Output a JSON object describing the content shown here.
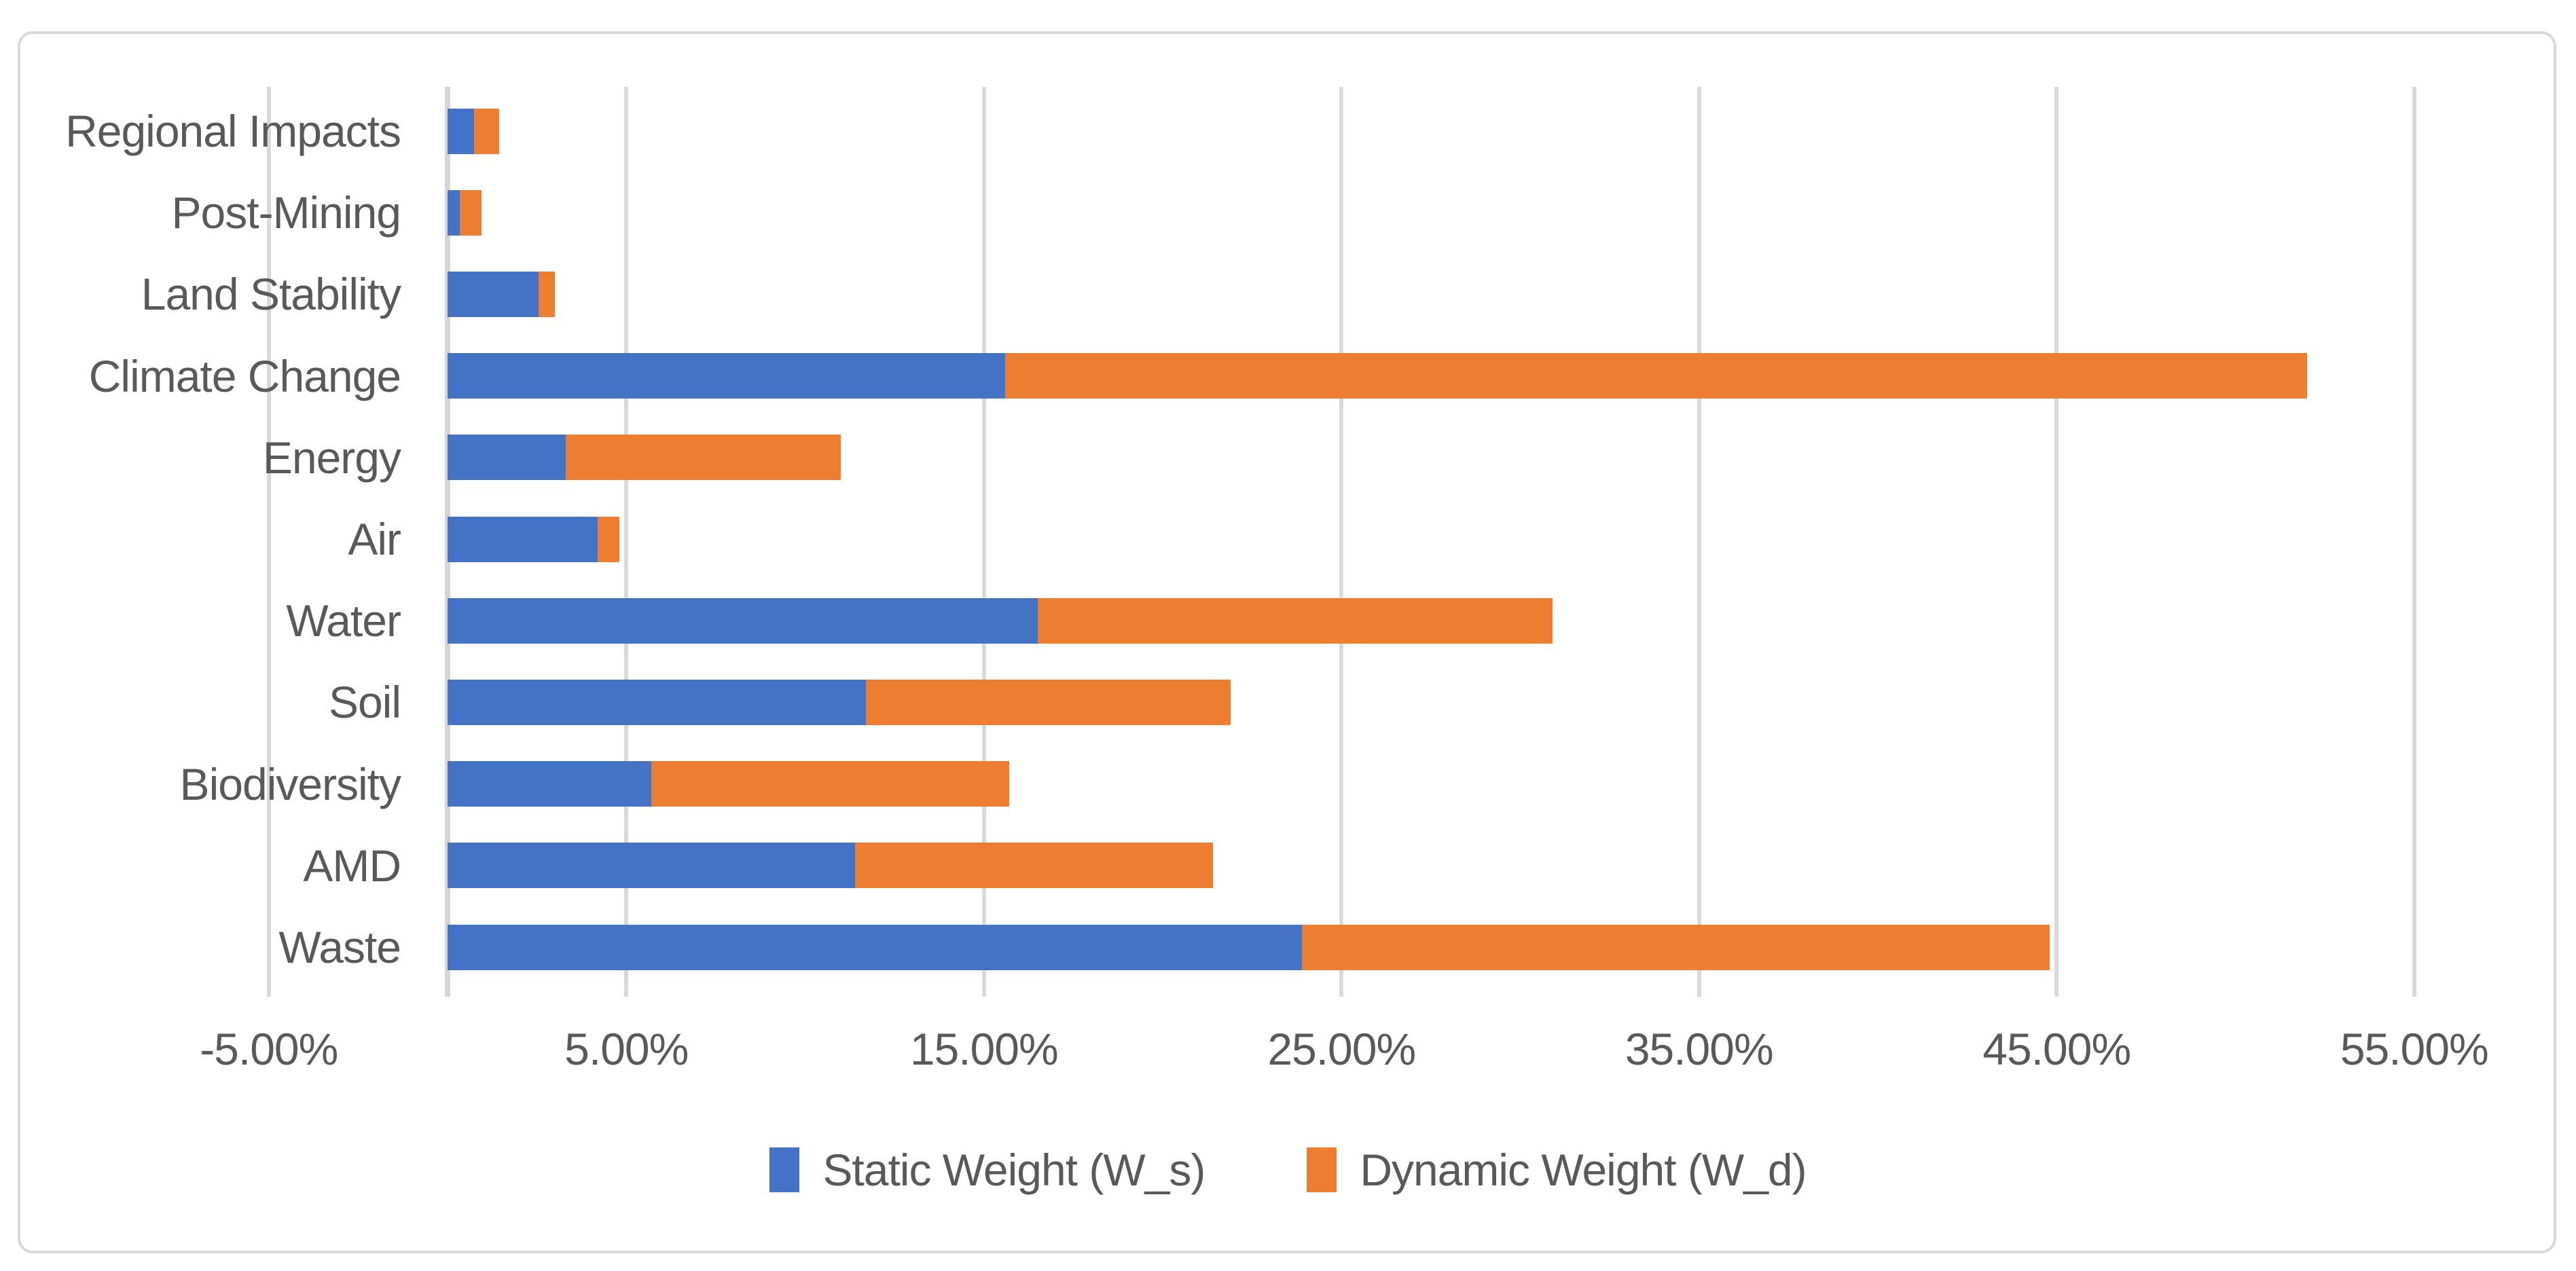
{
  "chart_data": {
    "type": "bar",
    "orientation": "horizontal",
    "stacked": true,
    "title": "",
    "categories": [
      "Regional Impacts",
      "Post-Mining",
      "Land Stability",
      "Climate Change",
      "Energy",
      "Air",
      "Water",
      "Soil",
      "Biodiversity",
      "AMD",
      "Waste"
    ],
    "series": [
      {
        "name": "Static Weight (W_s)",
        "color": "#4472C4",
        "values": [
          0.75,
          0.35,
          2.55,
          15.6,
          3.3,
          4.2,
          16.5,
          11.7,
          5.7,
          11.4,
          23.9
        ]
      },
      {
        "name": "Dynamic Weight (W_d)",
        "color": "#ED7D31",
        "values": [
          0.7,
          0.6,
          0.45,
          36.4,
          7.7,
          0.6,
          14.4,
          10.2,
          10.0,
          10.0,
          20.9
        ]
      }
    ],
    "x_axis": {
      "unit": "%",
      "min": -5,
      "max": 55,
      "tick_values": [
        -5,
        5,
        15,
        25,
        35,
        45,
        55
      ],
      "tick_labels": [
        "-5.00%",
        "5.00%",
        "15.00%",
        "25.00%",
        "35.00%",
        "45.00%",
        "55.00%"
      ]
    },
    "y_axis": {
      "label": ""
    },
    "legend": {
      "position": "bottom"
    },
    "grid": true
  },
  "colors": {
    "series_static": "#4472C4",
    "series_dynamic": "#ED7D31",
    "gridline": "#D9D9D9",
    "axis_text": "#595959",
    "chart_border": "#D9D9D9",
    "background": "#FFFFFF"
  }
}
